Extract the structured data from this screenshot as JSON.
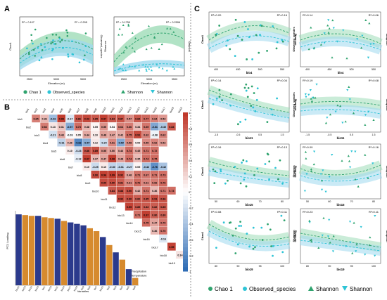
{
  "panel_labels": {
    "a": "A",
    "b": "B",
    "c": "C"
  },
  "colors": {
    "chao": "#2fa36e",
    "obs": "#2ec4d6",
    "band_green": "#9fdcb8",
    "band_blue": "#9ed8ee",
    "precip": "#2b3a8c",
    "temp": "#d68a2e",
    "pos": "#c0392b",
    "neg": "#2f6db5"
  },
  "panel_a": {
    "left": {
      "r2_chao": "R² = 0.107",
      "r2_obs": "R² = 0.295",
      "ylabel": "Chao1",
      "y2label": "Observed_species",
      "xlabel": "Elevation (m)",
      "xticks": [
        "2500",
        "3000",
        "3500"
      ]
    },
    "right": {
      "r2_a": "R² = 0.1759",
      "r2_b": "R² = 0.2596",
      "ylabel": "Shannon",
      "y2label": "Simpson",
      "xlabel": "Elevation (m)",
      "xticks": [
        "2500",
        "3000",
        "3500"
      ]
    },
    "legend": [
      "Chao 1",
      "Observed_species",
      "Shannon",
      "Shannon"
    ]
  },
  "panel_b": {
    "vars": [
      "bio1",
      "bio2",
      "bio3",
      "bio4",
      "bio5",
      "bio6",
      "bio7",
      "bio8",
      "bio9",
      "bio10",
      "bio11",
      "bio12",
      "bio13",
      "bio14",
      "bio15",
      "bio16",
      "bio17",
      "bio18",
      "bio19"
    ],
    "row_values": [
      [
        "0.65",
        "0.36",
        "-0.46",
        "0.98",
        "-0.17",
        "0.86",
        "0.93",
        "0.85",
        "0.97",
        "0.84",
        "0.87",
        "0.57",
        "0.84",
        "0.77",
        "0.64",
        "0.52"
      ],
      [
        "0.66",
        "0.13",
        "0.31",
        "-0.57",
        "0.73",
        "0.38",
        "0.05",
        "0.55",
        "0.04",
        "0.64",
        "0.66",
        "0.34",
        "0.69",
        "-0.61",
        "-0.40",
        "0.84"
      ],
      [
        "-0.21",
        "0.43",
        "-0.03",
        "0.05",
        "0.44",
        "0.10",
        "0.48",
        "0.47",
        "0.42",
        "0.75",
        "0.91",
        "0.62",
        "-0.08",
        "0.62"
      ],
      [
        "-0.31",
        "0.36",
        "-0.82",
        "-0.57",
        "0.12",
        "-0.24",
        "0.61",
        "-0.59",
        "0.58",
        "0.09",
        "0.59",
        "0.62",
        "0.52"
      ],
      [
        "0.10",
        "-0.23",
        "0.86",
        "0.89",
        "0.55",
        "0.50",
        "0.46",
        "0.74",
        "0.45",
        "0.71",
        "0.72"
      ],
      [
        "-0.12",
        "0.97",
        "0.37",
        "0.47",
        "0.98",
        "0.48",
        "0.74",
        "0.35",
        "0.74",
        "0.75"
      ],
      [
        "0.10",
        "-0.25",
        "0.10",
        "-0.30",
        "-0.31",
        "-0.27",
        "0.05",
        "-0.42",
        "-0.76",
        "-0.42"
      ],
      [
        "0.90",
        "0.96",
        "0.99",
        "0.92",
        "0.48",
        "0.71",
        "0.67",
        "0.71",
        "0.73"
      ],
      [
        "0.90",
        "0.90",
        "0.81",
        "0.61",
        "0.76",
        "0.61",
        "0.66",
        "0.76"
      ],
      [
        "0.84",
        "0.88",
        "0.90",
        "0.42",
        "0.71",
        "0.36",
        "0.71",
        "0.73"
      ],
      [
        "0.92",
        "0.90",
        "0.82",
        "0.85",
        "0.91",
        "0.86"
      ],
      [
        "0.95",
        "0.85",
        "0.83",
        "0.82",
        "0.85"
      ],
      [
        "0.71",
        "0.97",
        "0.80",
        "0.80"
      ],
      [
        "0.75",
        "0.47",
        "0.70"
      ],
      [
        "0.36",
        "0.70"
      ],
      [
        "-0.16"
      ],
      [
        "0.95"
      ],
      [
        "0.14"
      ],
      []
    ],
    "scale_ticks": [
      "1",
      "0.8",
      "0.6",
      "0.4",
      "0.2",
      "0",
      "-0.2",
      "-0.4",
      "-0.6",
      "-0.8",
      "-1"
    ],
    "bar_ylabel": "PC1 Loading",
    "bar_xlabel": "Variables",
    "legend": {
      "precip": "Precipitation",
      "temp": "Temperature"
    }
  },
  "panel_c": {
    "subplots": [
      {
        "r2_left": "R²=0.20",
        "r2_right": "R²=0.16",
        "xlabel": "bio4",
        "xticks": [
          "400",
          "450",
          "500",
          "550"
        ]
      },
      {
        "r2_left": "R²=0.14",
        "r2_right": "R²=0.06",
        "xlabel": "bio4",
        "xticks": [
          "400",
          "450",
          "500",
          "550"
        ]
      },
      {
        "r2_left": "R²=0.14",
        "r2_right": "R²=0.04",
        "xlabel": "bio11",
        "xticks": [
          "-1.5",
          "-0.5",
          "0.5",
          "1.5"
        ]
      },
      {
        "r2_left": "R²=0.19",
        "r2_right": "R²=0.08",
        "xlabel": "bio11",
        "xticks": [
          "-1.5",
          "-0.5",
          "0.5",
          "1.5"
        ]
      },
      {
        "r2_left": "R²=0.16",
        "r2_right": "R²=0.13",
        "xlabel": "bio15",
        "xticks": [
          "50",
          "60",
          "70",
          "80"
        ]
      },
      {
        "r2_left": "R²=0.09",
        "r2_right": "R²=0.16",
        "xlabel": "bio15",
        "xticks": [
          "50",
          "60",
          "70",
          "80"
        ]
      },
      {
        "r2_left": "R²=0.08",
        "r2_right": "R²=0.11",
        "xlabel": "bio19",
        "xticks": [
          "80",
          "90",
          "95",
          "100"
        ]
      },
      {
        "r2_left": "R²=0.23",
        "r2_right": "R²=0.11",
        "xlabel": "bio19",
        "xticks": [
          "80",
          "90",
          "95",
          "100"
        ]
      }
    ],
    "ylabels_left": [
      "Chao1",
      "Observed_species",
      "Chao1",
      "Observed_species",
      "Chao1",
      "Shannon",
      "Chao1",
      "Shannon"
    ],
    "ylabels_right": [
      "Simpson",
      "Simpson",
      "Simpson",
      "Simpson",
      "Simpson",
      "Simpson",
      "Simpson",
      "Simpson"
    ],
    "legend": [
      "Chao 1",
      "Observed_species",
      "Shannon",
      "Shannon"
    ]
  }
}
